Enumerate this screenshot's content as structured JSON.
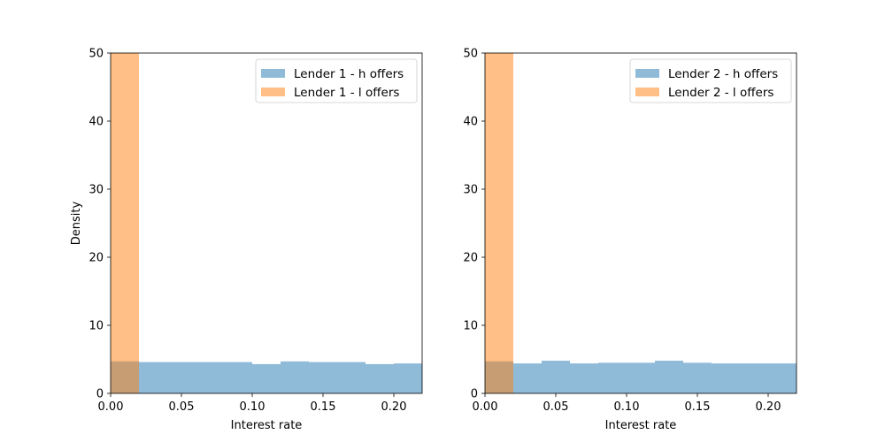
{
  "chart_data": [
    {
      "type": "histogram",
      "xlabel": "Interest rate",
      "ylabel": "Density",
      "xlim": [
        0,
        0.22
      ],
      "ylim": [
        0,
        50
      ],
      "xticks": [
        "0.00",
        "0.05",
        "0.10",
        "0.15",
        "0.20"
      ],
      "yticks": [
        "0",
        "10",
        "20",
        "30",
        "40",
        "50"
      ],
      "legend_position": "top-right",
      "series": [
        {
          "name": "Lender 1 - h offers",
          "color": "#1f77b4",
          "opacity": 0.5,
          "bins": [
            {
              "x0": 0.0,
              "x1": 0.02,
              "density": 4.7
            },
            {
              "x0": 0.02,
              "x1": 0.04,
              "density": 4.6
            },
            {
              "x0": 0.04,
              "x1": 0.06,
              "density": 4.6
            },
            {
              "x0": 0.06,
              "x1": 0.08,
              "density": 4.6
            },
            {
              "x0": 0.08,
              "x1": 0.1,
              "density": 4.6
            },
            {
              "x0": 0.1,
              "x1": 0.12,
              "density": 4.3
            },
            {
              "x0": 0.12,
              "x1": 0.14,
              "density": 4.7
            },
            {
              "x0": 0.14,
              "x1": 0.16,
              "density": 4.6
            },
            {
              "x0": 0.16,
              "x1": 0.18,
              "density": 4.6
            },
            {
              "x0": 0.18,
              "x1": 0.2,
              "density": 4.3
            },
            {
              "x0": 0.2,
              "x1": 0.22,
              "density": 4.4
            }
          ]
        },
        {
          "name": "Lender 1 - l offers",
          "color": "#ff7f0e",
          "opacity": 0.5,
          "bins": [
            {
              "x0": 0.0,
              "x1": 0.02,
              "density": 50
            }
          ]
        }
      ]
    },
    {
      "type": "histogram",
      "xlabel": "Interest rate",
      "ylabel": "",
      "xlim": [
        0,
        0.22
      ],
      "ylim": [
        0,
        50
      ],
      "xticks": [
        "0.00",
        "0.05",
        "0.10",
        "0.15",
        "0.20"
      ],
      "yticks": [
        "0",
        "10",
        "20",
        "30",
        "40",
        "50"
      ],
      "legend_position": "top-right",
      "series": [
        {
          "name": "Lender 2 - h offers",
          "color": "#1f77b4",
          "opacity": 0.5,
          "bins": [
            {
              "x0": 0.0,
              "x1": 0.02,
              "density": 4.7
            },
            {
              "x0": 0.02,
              "x1": 0.04,
              "density": 4.4
            },
            {
              "x0": 0.04,
              "x1": 0.06,
              "density": 4.8
            },
            {
              "x0": 0.06,
              "x1": 0.08,
              "density": 4.4
            },
            {
              "x0": 0.08,
              "x1": 0.1,
              "density": 4.5
            },
            {
              "x0": 0.1,
              "x1": 0.12,
              "density": 4.5
            },
            {
              "x0": 0.12,
              "x1": 0.14,
              "density": 4.8
            },
            {
              "x0": 0.14,
              "x1": 0.16,
              "density": 4.5
            },
            {
              "x0": 0.16,
              "x1": 0.18,
              "density": 4.4
            },
            {
              "x0": 0.18,
              "x1": 0.2,
              "density": 4.4
            },
            {
              "x0": 0.2,
              "x1": 0.22,
              "density": 4.4
            }
          ]
        },
        {
          "name": "Lender 2 - l offers",
          "color": "#ff7f0e",
          "opacity": 0.5,
          "bins": [
            {
              "x0": 0.0,
              "x1": 0.02,
              "density": 50
            }
          ]
        }
      ]
    }
  ]
}
